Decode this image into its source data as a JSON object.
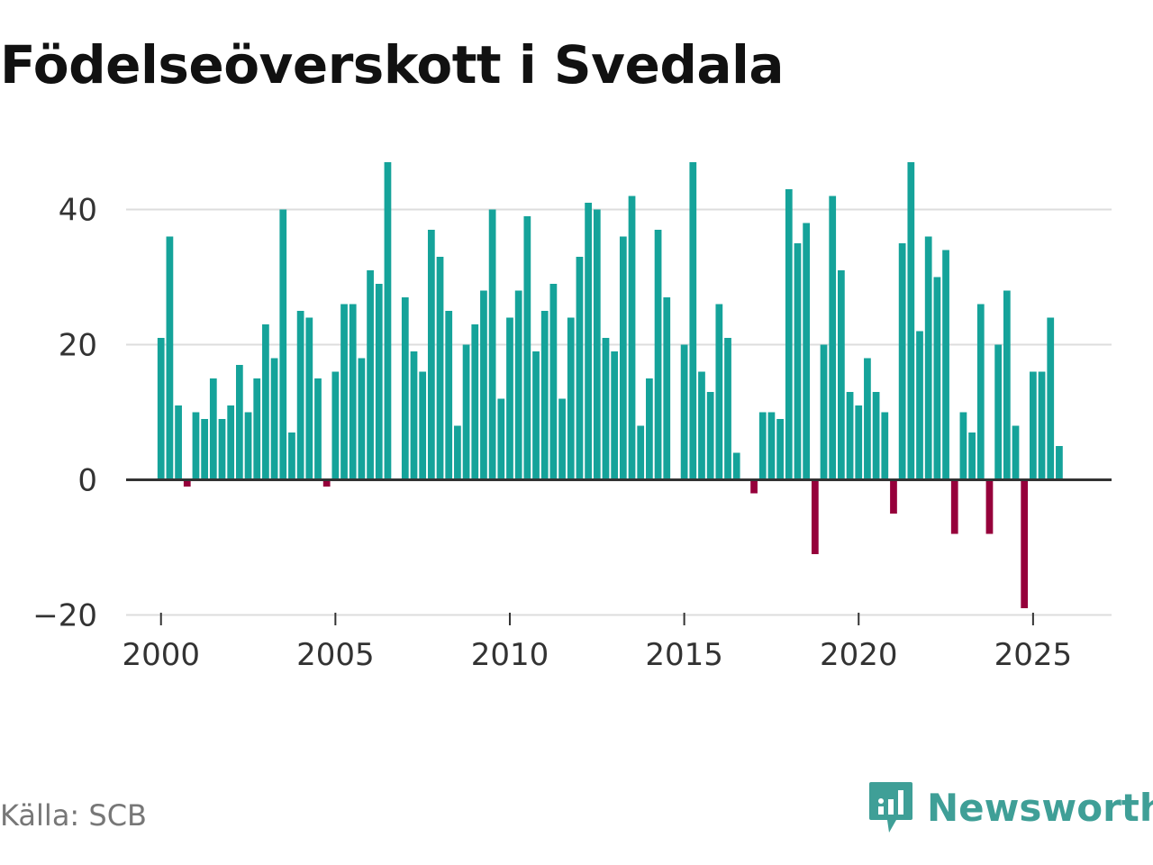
{
  "title": "Födelseöverskott i Svedala",
  "source": "Källa: SCB",
  "brand": "Newsworthy",
  "colors": {
    "positive": "#15a39a",
    "negative": "#96003b",
    "brand": "#3f9f97"
  },
  "chart_data": {
    "type": "bar",
    "title": "Födelseöverskott i Svedala",
    "xlabel": "",
    "ylabel": "",
    "grid": true,
    "legend": "none",
    "x_period": "quarter",
    "x_start": 2000.0,
    "xlim": [
      1999.0,
      2027.25
    ],
    "ylim": [
      -21,
      49
    ],
    "y_ticks": [
      -20,
      0,
      20,
      40
    ],
    "y_tick_labels": [
      "−20",
      "0",
      "20",
      "40"
    ],
    "x_ticks": [
      2000,
      2005,
      2010,
      2015,
      2020,
      2025
    ],
    "x_tick_labels": [
      "2000",
      "2005",
      "2010",
      "2015",
      "2020",
      "2025"
    ],
    "values": [
      21,
      36,
      11,
      -1,
      10,
      9,
      15,
      9,
      11,
      17,
      10,
      15,
      23,
      18,
      40,
      7,
      25,
      24,
      15,
      -1,
      16,
      26,
      26,
      18,
      31,
      29,
      47,
      0,
      27,
      19,
      16,
      37,
      33,
      25,
      8,
      20,
      23,
      28,
      40,
      12,
      24,
      28,
      39,
      19,
      25,
      29,
      12,
      24,
      33,
      41,
      40,
      21,
      19,
      36,
      42,
      8,
      15,
      37,
      27,
      0,
      20,
      47,
      16,
      13,
      26,
      21,
      4,
      0,
      -2,
      10,
      10,
      9,
      43,
      35,
      38,
      -11,
      20,
      42,
      31,
      13,
      11,
      18,
      13,
      10,
      -5,
      35,
      47,
      22,
      36,
      30,
      34,
      -8,
      10,
      7,
      26,
      -8,
      20,
      28,
      8,
      -19,
      16,
      16,
      24,
      5
    ]
  }
}
